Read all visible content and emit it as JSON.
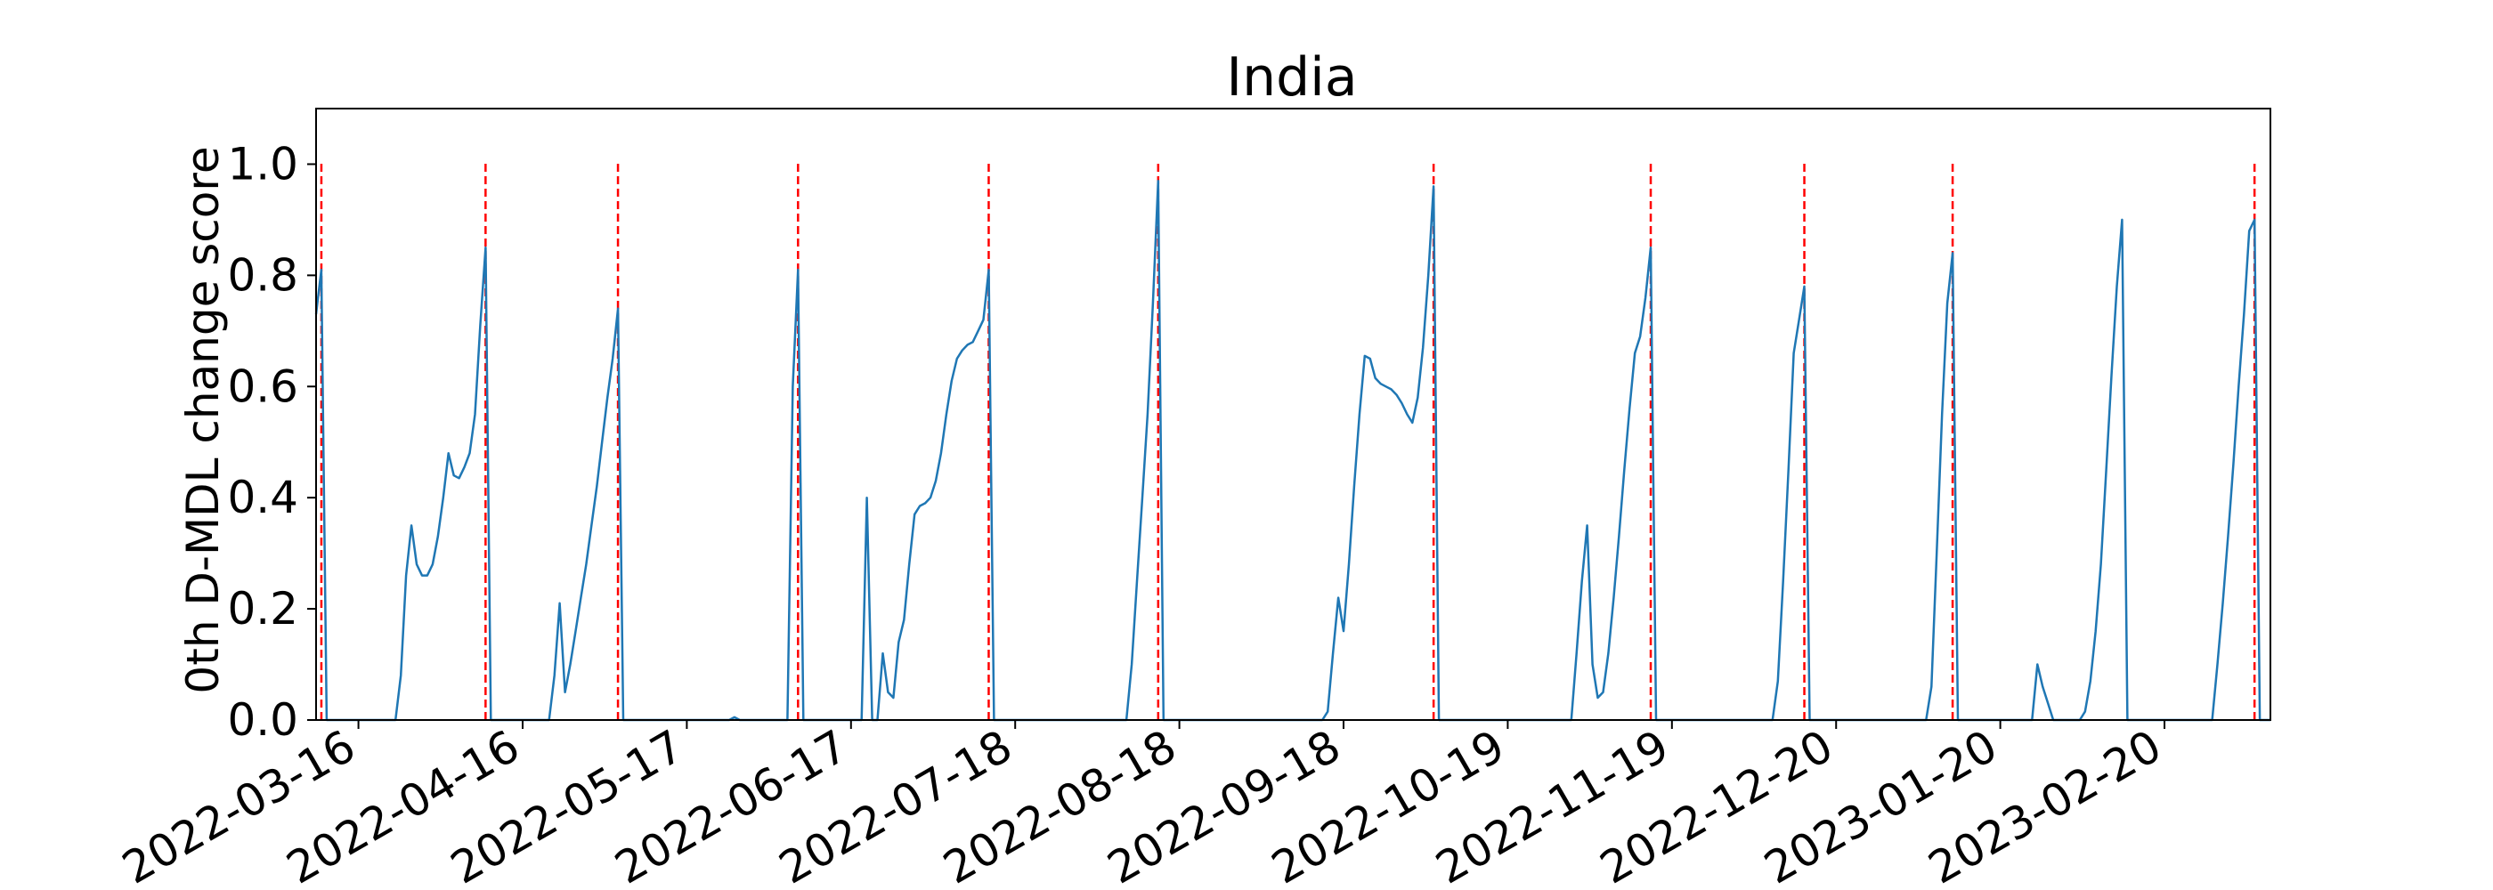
{
  "chart_data": {
    "type": "line",
    "title": "India",
    "xlabel": "",
    "ylabel": "0th D-MDL change score",
    "x_type": "date",
    "xlim": [
      "2022-03-08",
      "2023-03-12"
    ],
    "ylim": [
      0,
      1.1
    ],
    "grid": false,
    "legend": "none",
    "x_ticks": [
      "2022-03-16",
      "2022-04-16",
      "2022-05-17",
      "2022-06-17",
      "2022-07-18",
      "2022-08-18",
      "2022-09-18",
      "2022-10-19",
      "2022-11-19",
      "2022-12-20",
      "2023-01-20",
      "2023-02-20"
    ],
    "y_ticks": [
      0.0,
      0.2,
      0.4,
      0.6,
      0.8,
      1.0
    ],
    "y_tick_labels": [
      "0.0",
      "0.2",
      "0.4",
      "0.6",
      "0.8",
      "1.0"
    ],
    "series": [
      {
        "color": "#1f77b4",
        "points": [
          [
            "2022-03-08",
            0.73
          ],
          [
            "2022-03-09",
            0.81
          ],
          [
            "2022-03-10",
            0.0
          ],
          [
            "2022-03-23",
            0.0
          ],
          [
            "2022-03-24",
            0.08
          ],
          [
            "2022-03-25",
            0.26
          ],
          [
            "2022-03-26",
            0.35
          ],
          [
            "2022-03-27",
            0.28
          ],
          [
            "2022-03-28",
            0.26
          ],
          [
            "2022-03-29",
            0.26
          ],
          [
            "2022-03-30",
            0.28
          ],
          [
            "2022-03-31",
            0.33
          ],
          [
            "2022-04-01",
            0.4
          ],
          [
            "2022-04-02",
            0.48
          ],
          [
            "2022-04-03",
            0.44
          ],
          [
            "2022-04-04",
            0.435
          ],
          [
            "2022-04-05",
            0.455
          ],
          [
            "2022-04-06",
            0.48
          ],
          [
            "2022-04-07",
            0.55
          ],
          [
            "2022-04-08",
            0.71
          ],
          [
            "2022-04-09",
            0.85
          ],
          [
            "2022-04-10",
            0.0
          ],
          [
            "2022-04-21",
            0.0
          ],
          [
            "2022-04-22",
            0.08
          ],
          [
            "2022-04-23",
            0.21
          ],
          [
            "2022-04-24",
            0.05
          ],
          [
            "2022-04-25",
            0.1
          ],
          [
            "2022-04-26",
            0.16
          ],
          [
            "2022-04-27",
            0.22
          ],
          [
            "2022-04-28",
            0.28
          ],
          [
            "2022-04-29",
            0.35
          ],
          [
            "2022-04-30",
            0.42
          ],
          [
            "2022-05-01",
            0.5
          ],
          [
            "2022-05-02",
            0.58
          ],
          [
            "2022-05-03",
            0.65
          ],
          [
            "2022-05-04",
            0.74
          ],
          [
            "2022-05-05",
            0.0
          ],
          [
            "2022-05-25",
            0.0
          ],
          [
            "2022-05-26",
            0.005
          ],
          [
            "2022-05-27",
            0.0
          ],
          [
            "2022-06-05",
            0.0
          ],
          [
            "2022-06-06",
            0.6
          ],
          [
            "2022-06-07",
            0.81
          ],
          [
            "2022-06-08",
            0.0
          ],
          [
            "2022-06-19",
            0.0
          ],
          [
            "2022-06-20",
            0.4
          ],
          [
            "2022-06-21",
            0.0
          ],
          [
            "2022-06-22",
            0.0
          ],
          [
            "2022-06-23",
            0.12
          ],
          [
            "2022-06-24",
            0.05
          ],
          [
            "2022-06-25",
            0.04
          ],
          [
            "2022-06-26",
            0.14
          ],
          [
            "2022-06-27",
            0.18
          ],
          [
            "2022-06-28",
            0.28
          ],
          [
            "2022-06-29",
            0.37
          ],
          [
            "2022-06-30",
            0.385
          ],
          [
            "2022-07-01",
            0.39
          ],
          [
            "2022-07-02",
            0.4
          ],
          [
            "2022-07-03",
            0.43
          ],
          [
            "2022-07-04",
            0.48
          ],
          [
            "2022-07-05",
            0.55
          ],
          [
            "2022-07-06",
            0.61
          ],
          [
            "2022-07-07",
            0.65
          ],
          [
            "2022-07-08",
            0.665
          ],
          [
            "2022-07-09",
            0.675
          ],
          [
            "2022-07-10",
            0.68
          ],
          [
            "2022-07-11",
            0.7
          ],
          [
            "2022-07-12",
            0.72
          ],
          [
            "2022-07-13",
            0.81
          ],
          [
            "2022-07-14",
            0.0
          ],
          [
            "2022-08-08",
            0.0
          ],
          [
            "2022-08-09",
            0.1
          ],
          [
            "2022-08-10",
            0.25
          ],
          [
            "2022-08-11",
            0.4
          ],
          [
            "2022-08-12",
            0.55
          ],
          [
            "2022-08-13",
            0.75
          ],
          [
            "2022-08-14",
            0.97
          ],
          [
            "2022-08-15",
            0.0
          ],
          [
            "2022-09-14",
            0.0
          ],
          [
            "2022-09-15",
            0.015
          ],
          [
            "2022-09-16",
            0.12
          ],
          [
            "2022-09-17",
            0.22
          ],
          [
            "2022-09-18",
            0.16
          ],
          [
            "2022-09-19",
            0.28
          ],
          [
            "2022-09-20",
            0.42
          ],
          [
            "2022-09-21",
            0.55
          ],
          [
            "2022-09-22",
            0.655
          ],
          [
            "2022-09-23",
            0.65
          ],
          [
            "2022-09-24",
            0.615
          ],
          [
            "2022-09-25",
            0.605
          ],
          [
            "2022-09-26",
            0.6
          ],
          [
            "2022-09-27",
            0.595
          ],
          [
            "2022-09-28",
            0.585
          ],
          [
            "2022-09-29",
            0.57
          ],
          [
            "2022-09-30",
            0.55
          ],
          [
            "2022-10-01",
            0.535
          ],
          [
            "2022-10-02",
            0.58
          ],
          [
            "2022-10-03",
            0.67
          ],
          [
            "2022-10-04",
            0.8
          ],
          [
            "2022-10-05",
            0.96
          ],
          [
            "2022-10-06",
            0.0
          ],
          [
            "2022-10-31",
            0.0
          ],
          [
            "2022-11-01",
            0.12
          ],
          [
            "2022-11-02",
            0.25
          ],
          [
            "2022-11-03",
            0.35
          ],
          [
            "2022-11-04",
            0.1
          ],
          [
            "2022-11-05",
            0.04
          ],
          [
            "2022-11-06",
            0.05
          ],
          [
            "2022-11-07",
            0.12
          ],
          [
            "2022-11-08",
            0.22
          ],
          [
            "2022-11-09",
            0.33
          ],
          [
            "2022-11-10",
            0.45
          ],
          [
            "2022-11-11",
            0.56
          ],
          [
            "2022-11-12",
            0.66
          ],
          [
            "2022-11-13",
            0.69
          ],
          [
            "2022-11-14",
            0.76
          ],
          [
            "2022-11-15",
            0.85
          ],
          [
            "2022-11-16",
            0.0
          ],
          [
            "2022-12-08",
            0.0
          ],
          [
            "2022-12-09",
            0.07
          ],
          [
            "2022-12-10",
            0.25
          ],
          [
            "2022-12-11",
            0.45
          ],
          [
            "2022-12-12",
            0.66
          ],
          [
            "2022-12-13",
            0.72
          ],
          [
            "2022-12-14",
            0.78
          ],
          [
            "2022-12-15",
            0.0
          ],
          [
            "2023-01-06",
            0.0
          ],
          [
            "2023-01-07",
            0.06
          ],
          [
            "2023-01-08",
            0.3
          ],
          [
            "2023-01-09",
            0.55
          ],
          [
            "2023-01-10",
            0.75
          ],
          [
            "2023-01-11",
            0.84
          ],
          [
            "2023-01-12",
            0.0
          ],
          [
            "2023-01-26",
            0.0
          ],
          [
            "2023-01-27",
            0.1
          ],
          [
            "2023-01-28",
            0.06
          ],
          [
            "2023-01-29",
            0.03
          ],
          [
            "2023-01-30",
            0.0
          ],
          [
            "2023-02-04",
            0.0
          ],
          [
            "2023-02-05",
            0.015
          ],
          [
            "2023-02-06",
            0.07
          ],
          [
            "2023-02-07",
            0.16
          ],
          [
            "2023-02-08",
            0.28
          ],
          [
            "2023-02-09",
            0.45
          ],
          [
            "2023-02-10",
            0.62
          ],
          [
            "2023-02-11",
            0.78
          ],
          [
            "2023-02-12",
            0.9
          ],
          [
            "2023-02-13",
            0.0
          ],
          [
            "2023-03-01",
            0.0
          ],
          [
            "2023-03-02",
            0.1
          ],
          [
            "2023-03-03",
            0.21
          ],
          [
            "2023-03-04",
            0.33
          ],
          [
            "2023-03-05",
            0.46
          ],
          [
            "2023-03-06",
            0.6
          ],
          [
            "2023-03-07",
            0.73
          ],
          [
            "2023-03-08",
            0.88
          ],
          [
            "2023-03-09",
            0.9
          ],
          [
            "2023-03-10",
            0.0
          ],
          [
            "2023-03-12",
            0.0
          ]
        ]
      }
    ],
    "change_points": {
      "style": "dashed",
      "color": "#ff0000",
      "dates": [
        "2022-03-09",
        "2022-04-09",
        "2022-05-04",
        "2022-06-07",
        "2022-07-13",
        "2022-08-14",
        "2022-10-05",
        "2022-11-15",
        "2022-12-14",
        "2023-01-11",
        "2023-03-09"
      ]
    }
  }
}
